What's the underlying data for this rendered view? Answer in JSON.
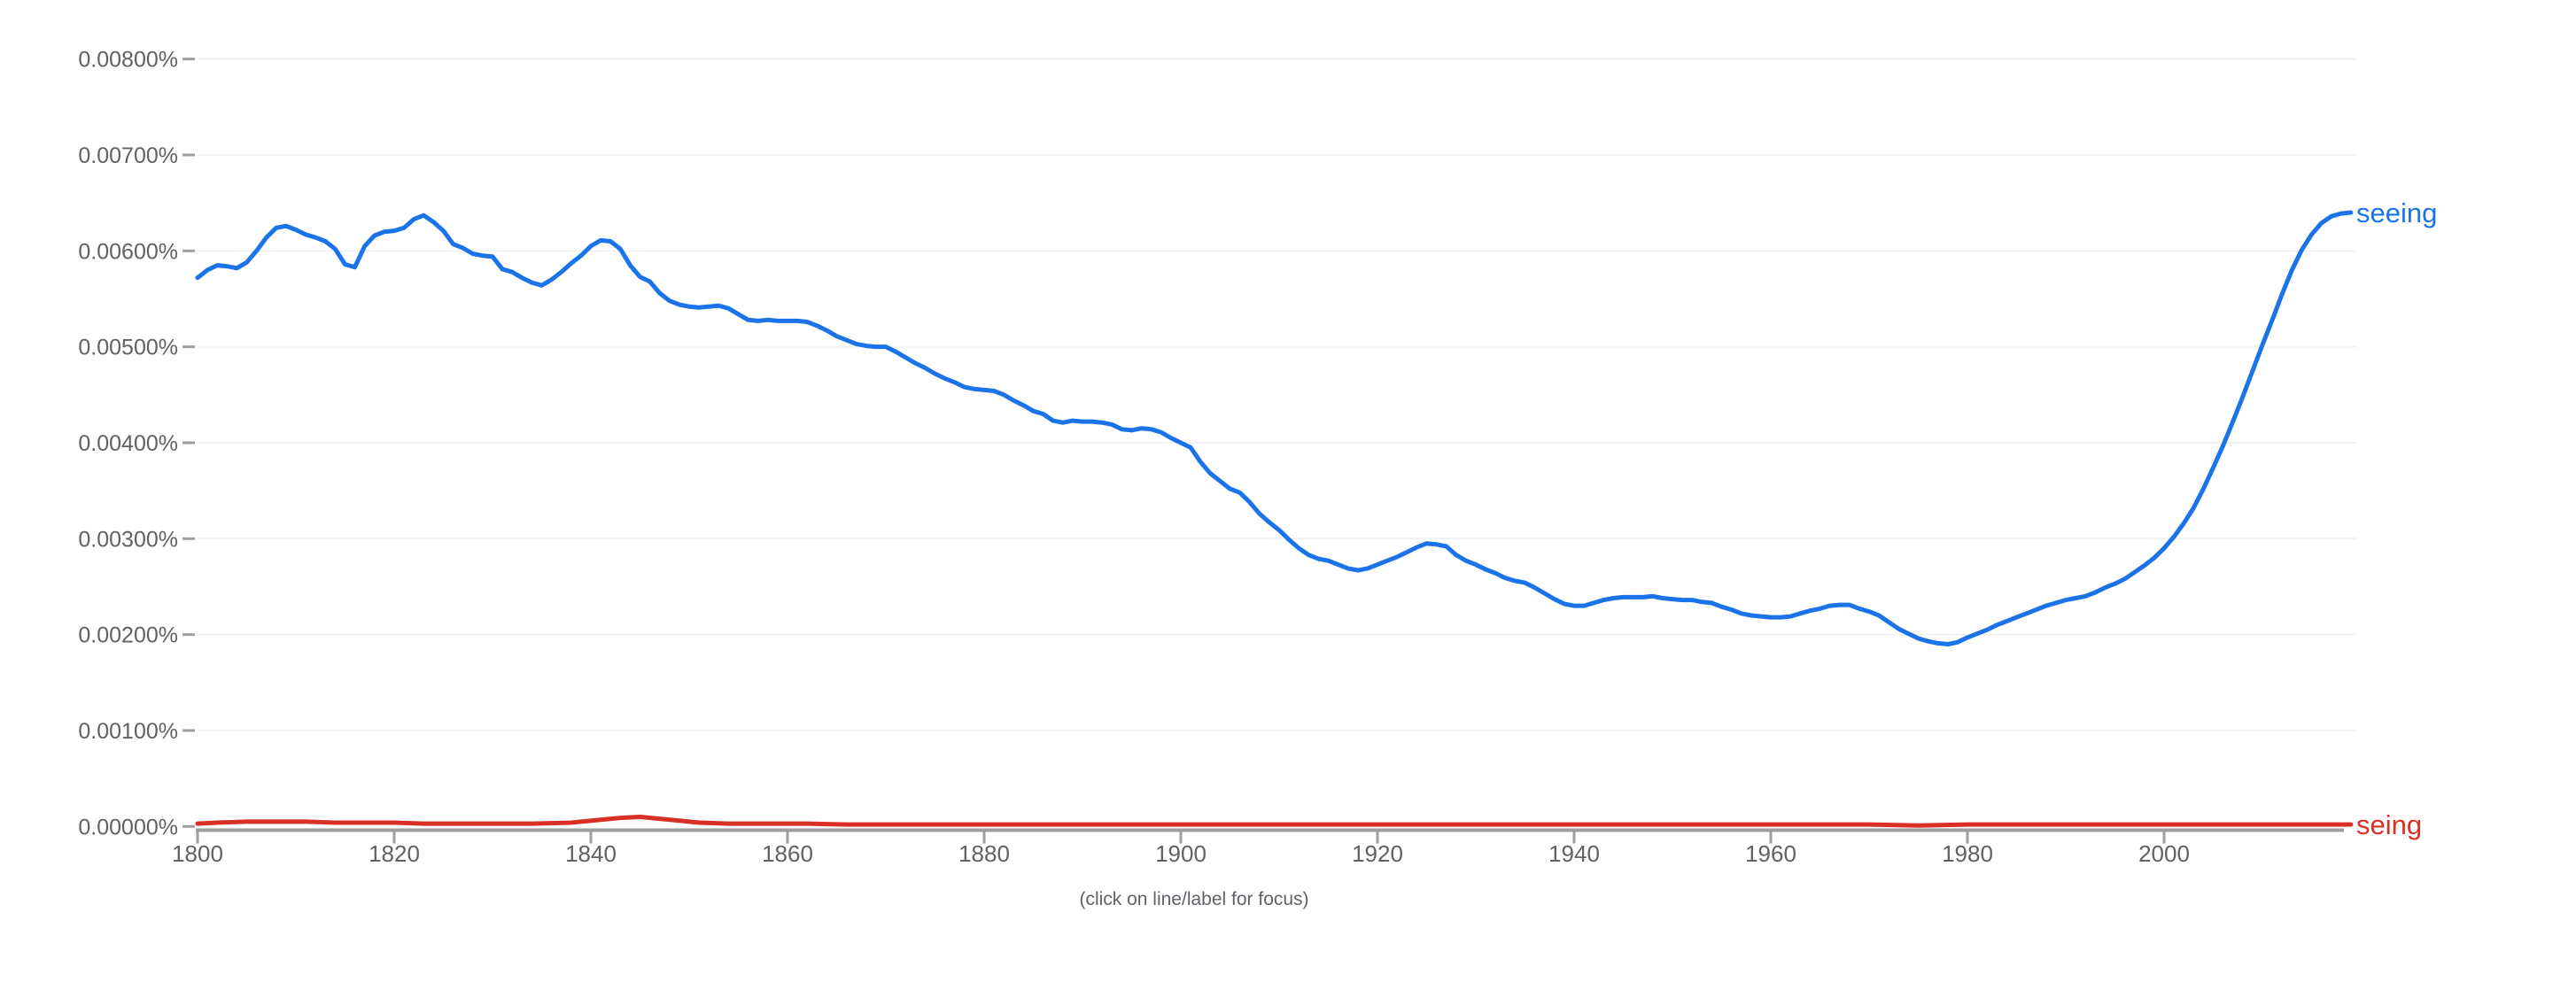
{
  "page": {
    "background_color": "#ffffff",
    "footer_note": "(click on line/label for focus)"
  },
  "chart_data": {
    "type": "line",
    "title": "",
    "grid": "horizontal-only",
    "legend_position": "inline-right-of-line-ends",
    "axis_color": "#9e9e9e",
    "gridline_color": "#f2f2f2",
    "tick_label_color": "#616161",
    "x_axis": {
      "range": [
        1800,
        2019
      ],
      "ticks": [
        1800,
        1820,
        1840,
        1860,
        1880,
        1900,
        1920,
        1940,
        1960,
        1980,
        2000
      ]
    },
    "y_axis": {
      "range_percent": [
        0,
        0.008
      ],
      "tick_step_percent": 0.001,
      "tick_labels": [
        "0.00800%",
        "0.00700%",
        "0.00600%",
        "0.00500%",
        "0.00400%",
        "0.00300%",
        "0.00200%",
        "0.00100%",
        "0.00000%"
      ]
    },
    "series": [
      {
        "name": "seeing",
        "color": "#1a73e8",
        "start_year": 1800,
        "end_year": 2019,
        "values_percent": [
          0.00572,
          0.0058,
          0.00585,
          0.00584,
          0.00582,
          0.00588,
          0.006,
          0.00614,
          0.00624,
          0.00626,
          0.00622,
          0.00617,
          0.00614,
          0.0061,
          0.00602,
          0.00586,
          0.00583,
          0.00605,
          0.00616,
          0.0062,
          0.00621,
          0.00624,
          0.00633,
          0.00637,
          0.0063,
          0.00621,
          0.00607,
          0.00603,
          0.00597,
          0.00595,
          0.00594,
          0.00581,
          0.00578,
          0.00572,
          0.00567,
          0.00564,
          0.0057,
          0.00578,
          0.00587,
          0.00595,
          0.00605,
          0.00611,
          0.0061,
          0.00602,
          0.00585,
          0.00573,
          0.00568,
          0.00556,
          0.00548,
          0.00544,
          0.00542,
          0.00541,
          0.00542,
          0.00543,
          0.0054,
          0.00534,
          0.00528,
          0.00527,
          0.00528,
          0.00527,
          0.00527,
          0.00527,
          0.00526,
          0.00522,
          0.00517,
          0.00511,
          0.00507,
          0.00503,
          0.00501,
          0.005,
          0.005,
          0.00495,
          0.00489,
          0.00483,
          0.00478,
          0.00472,
          0.00467,
          0.00463,
          0.00458,
          0.00456,
          0.00455,
          0.00454,
          0.0045,
          0.00444,
          0.00439,
          0.00433,
          0.0043,
          0.00423,
          0.00421,
          0.00423,
          0.00422,
          0.00422,
          0.00421,
          0.00419,
          0.00414,
          0.00413,
          0.00415,
          0.00414,
          0.00411,
          0.00405,
          0.004,
          0.00395,
          0.0038,
          0.00368,
          0.0036,
          0.00352,
          0.00348,
          0.00338,
          0.00326,
          0.00317,
          0.00309,
          0.00299,
          0.0029,
          0.00283,
          0.00279,
          0.00277,
          0.00273,
          0.00269,
          0.00267,
          0.00269,
          0.00273,
          0.00277,
          0.00281,
          0.00286,
          0.00291,
          0.00295,
          0.00294,
          0.00292,
          0.00283,
          0.00277,
          0.00273,
          0.00268,
          0.00264,
          0.00259,
          0.00256,
          0.00254,
          0.00249,
          0.00243,
          0.00237,
          0.00232,
          0.0023,
          0.0023,
          0.00233,
          0.00236,
          0.00238,
          0.00239,
          0.00239,
          0.00239,
          0.0024,
          0.00238,
          0.00237,
          0.00236,
          0.00236,
          0.00234,
          0.00233,
          0.00229,
          0.00226,
          0.00222,
          0.0022,
          0.00219,
          0.00218,
          0.00218,
          0.00219,
          0.00222,
          0.00225,
          0.00227,
          0.0023,
          0.00231,
          0.00231,
          0.00227,
          0.00224,
          0.0022,
          0.00213,
          0.00206,
          0.00201,
          0.00196,
          0.00193,
          0.00191,
          0.0019,
          0.00192,
          0.00197,
          0.00201,
          0.00205,
          0.0021,
          0.00214,
          0.00218,
          0.00222,
          0.00226,
          0.0023,
          0.00233,
          0.00236,
          0.00238,
          0.0024,
          0.00244,
          0.00249,
          0.00253,
          0.00258,
          0.00265,
          0.00272,
          0.0028,
          0.0029,
          0.00302,
          0.00316,
          0.00332,
          0.00352,
          0.00374,
          0.00397,
          0.00422,
          0.00448,
          0.00475,
          0.00502,
          0.00528,
          0.00555,
          0.0058,
          0.00601,
          0.00617,
          0.00629,
          0.00636,
          0.00639,
          0.0064
        ]
      },
      {
        "name": "seing",
        "color": "#d93025",
        "points_percent": [
          [
            1800,
            3e-05
          ],
          [
            1802,
            4e-05
          ],
          [
            1805,
            5e-05
          ],
          [
            1808,
            5e-05
          ],
          [
            1811,
            5e-05
          ],
          [
            1814,
            4e-05
          ],
          [
            1817,
            4e-05
          ],
          [
            1820,
            4e-05
          ],
          [
            1823,
            3e-05
          ],
          [
            1826,
            3e-05
          ],
          [
            1830,
            3e-05
          ],
          [
            1834,
            3e-05
          ],
          [
            1838,
            4e-05
          ],
          [
            1841,
            7e-05
          ],
          [
            1843,
            9e-05
          ],
          [
            1845,
            0.0001
          ],
          [
            1847,
            8e-05
          ],
          [
            1849,
            6e-05
          ],
          [
            1851,
            4e-05
          ],
          [
            1854,
            3e-05
          ],
          [
            1858,
            3e-05
          ],
          [
            1862,
            3e-05
          ],
          [
            1866,
            2e-05
          ],
          [
            1870,
            2e-05
          ],
          [
            1875,
            2e-05
          ],
          [
            1880,
            2e-05
          ],
          [
            1885,
            2e-05
          ],
          [
            1890,
            2e-05
          ],
          [
            1895,
            2e-05
          ],
          [
            1900,
            2e-05
          ],
          [
            1905,
            2e-05
          ],
          [
            1910,
            2e-05
          ],
          [
            1915,
            2e-05
          ],
          [
            1920,
            2e-05
          ],
          [
            1925,
            2e-05
          ],
          [
            1930,
            2e-05
          ],
          [
            1935,
            2e-05
          ],
          [
            1940,
            2e-05
          ],
          [
            1945,
            2e-05
          ],
          [
            1950,
            2e-05
          ],
          [
            1955,
            2e-05
          ],
          [
            1960,
            2e-05
          ],
          [
            1965,
            2e-05
          ],
          [
            1970,
            2e-05
          ],
          [
            1975,
            1e-05
          ],
          [
            1980,
            2e-05
          ],
          [
            1985,
            2e-05
          ],
          [
            1990,
            2e-05
          ],
          [
            1995,
            2e-05
          ],
          [
            2000,
            2e-05
          ],
          [
            2005,
            2e-05
          ],
          [
            2010,
            2e-05
          ],
          [
            2015,
            2e-05
          ],
          [
            2019,
            2e-05
          ]
        ]
      }
    ]
  }
}
